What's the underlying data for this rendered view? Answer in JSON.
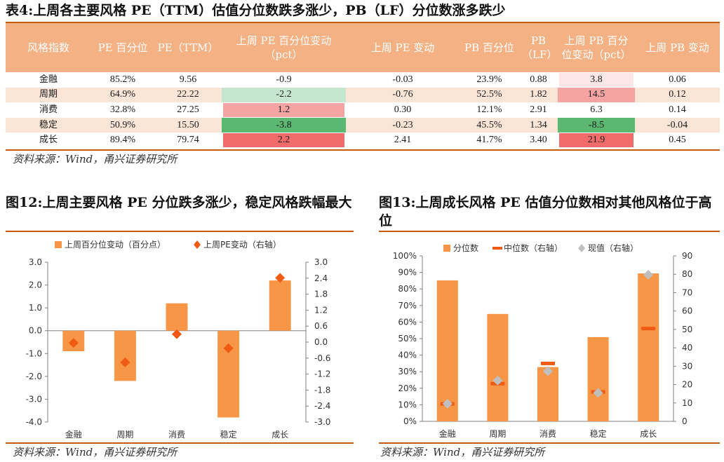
{
  "table4": {
    "caption": "表4:上周各主要风格 PE（TTM）估值分位数跌多涨少，PB（LF）分位数涨多跌少",
    "headers": [
      "风格指数",
      "PE 百分位",
      "PE（TTM）",
      "上周 PE 百分位变动（pct）",
      "上周 PE 变动",
      "PB 百分位",
      "PB（LF）",
      "上周 PB 百分位变动（pct）",
      "上周 PB 变动"
    ],
    "rows": [
      {
        "name": "金融",
        "pe_pct": "85.2%",
        "pe": "9.56",
        "pe_pct_chg": "-0.9",
        "pe_chg": "-0.03",
        "pb_pct": "23.9%",
        "pb": "0.88",
        "pb_pct_chg": "3.8",
        "pb_chg": "0.06"
      },
      {
        "name": "周期",
        "pe_pct": "64.9%",
        "pe": "22.22",
        "pe_pct_chg": "-2.2",
        "pe_chg": "-0.76",
        "pb_pct": "52.5%",
        "pb": "1.82",
        "pb_pct_chg": "14.5",
        "pb_chg": "0.12"
      },
      {
        "name": "消费",
        "pe_pct": "32.8%",
        "pe": "27.25",
        "pe_pct_chg": "1.2",
        "pe_chg": "0.30",
        "pb_pct": "12.1%",
        "pb": "2.91",
        "pb_pct_chg": "6.3",
        "pb_chg": "0.14"
      },
      {
        "name": "稳定",
        "pe_pct": "50.9%",
        "pe": "15.50",
        "pe_pct_chg": "-3.8",
        "pe_chg": "-0.23",
        "pb_pct": "45.5%",
        "pb": "1.34",
        "pb_pct_chg": "-8.5",
        "pb_chg": "-0.04"
      },
      {
        "name": "成长",
        "pe_pct": "89.4%",
        "pe": "79.74",
        "pe_pct_chg": "2.2",
        "pe_chg": "2.41",
        "pb_pct": "41.7%",
        "pb": "3.40",
        "pb_pct_chg": "21.9",
        "pb_chg": "0.45"
      }
    ],
    "highlight_colors": {
      "pe_pct_chg": [
        "#ffffff",
        "#c6e6cf",
        "#f5a3a3",
        "#5cb870",
        "#f26b6b"
      ],
      "pb_pct_chg": [
        "#fde6e6",
        "#f5a3a3",
        "#ffffff",
        "#5cb870",
        "#f26b6b"
      ]
    },
    "source": "资料来源：Wind，甬兴证券研究所"
  },
  "fig12": {
    "caption": "图12:上周主要风格 PE 分位跌多涨少，稳定风格跌幅最大",
    "source": "资料来源：Wind，甬兴证券研究所"
  },
  "fig13": {
    "caption": "图13:上周成长风格 PE 估值分位数相对其他风格位于高位",
    "source": "资料来源：Wind，甬兴证券研究所"
  },
  "chart_data": [
    {
      "type": "bar",
      "title": "",
      "categories": [
        "金融",
        "周期",
        "消费",
        "稳定",
        "成长"
      ],
      "series": [
        {
          "name": "上周百分位变动（百分点）",
          "kind": "bar",
          "axis": "left",
          "color": "#f79646",
          "values": [
            -0.9,
            -2.2,
            1.2,
            -3.8,
            2.2
          ]
        },
        {
          "name": "上周PE变动（右轴）",
          "kind": "marker-diamond",
          "axis": "right",
          "color": "#f05a14",
          "values": [
            -0.03,
            -0.76,
            0.3,
            -0.23,
            2.41
          ]
        }
      ],
      "ylim_left": [
        -4.0,
        3.0
      ],
      "yticks_left": [
        "3.0",
        "2.0",
        "1.0",
        "0.0",
        "-1.0",
        "-2.0",
        "-3.0",
        "-4.0"
      ],
      "ylim_right": [
        -3.0,
        3.0
      ],
      "yticks_right": [
        "3.0",
        "2.4",
        "1.8",
        "1.2",
        "0.6",
        "0.0",
        "-0.6",
        "-1.2",
        "-1.8",
        "-2.4",
        "-3.0"
      ],
      "legend": "top",
      "grid": false
    },
    {
      "type": "bar",
      "title": "",
      "categories": [
        "金融",
        "周期",
        "消费",
        "稳定",
        "成长"
      ],
      "series": [
        {
          "name": "分位数",
          "kind": "bar",
          "axis": "left",
          "color": "#f79646",
          "values": [
            85.2,
            64.9,
            32.8,
            50.9,
            89.4
          ]
        },
        {
          "name": "中位数（右轴）",
          "kind": "marker-dash",
          "axis": "right",
          "color": "#f05a14",
          "values": [
            9.5,
            20.5,
            31.5,
            16.0,
            50.5
          ]
        },
        {
          "name": "现值（右轴）",
          "kind": "marker-diamond",
          "axis": "right",
          "color": "#bfbfbf",
          "values": [
            9.56,
            22.22,
            27.25,
            15.5,
            79.74
          ]
        }
      ],
      "ylim_left": [
        0,
        100
      ],
      "yticks_left": [
        "100%",
        "90%",
        "80%",
        "70%",
        "60%",
        "50%",
        "40%",
        "30%",
        "20%",
        "10%",
        "0%"
      ],
      "ylim_right": [
        0,
        90
      ],
      "yticks_right": [
        "90",
        "80",
        "70",
        "60",
        "50",
        "40",
        "30",
        "20",
        "10",
        "0"
      ],
      "legend": "top",
      "grid": false
    }
  ]
}
